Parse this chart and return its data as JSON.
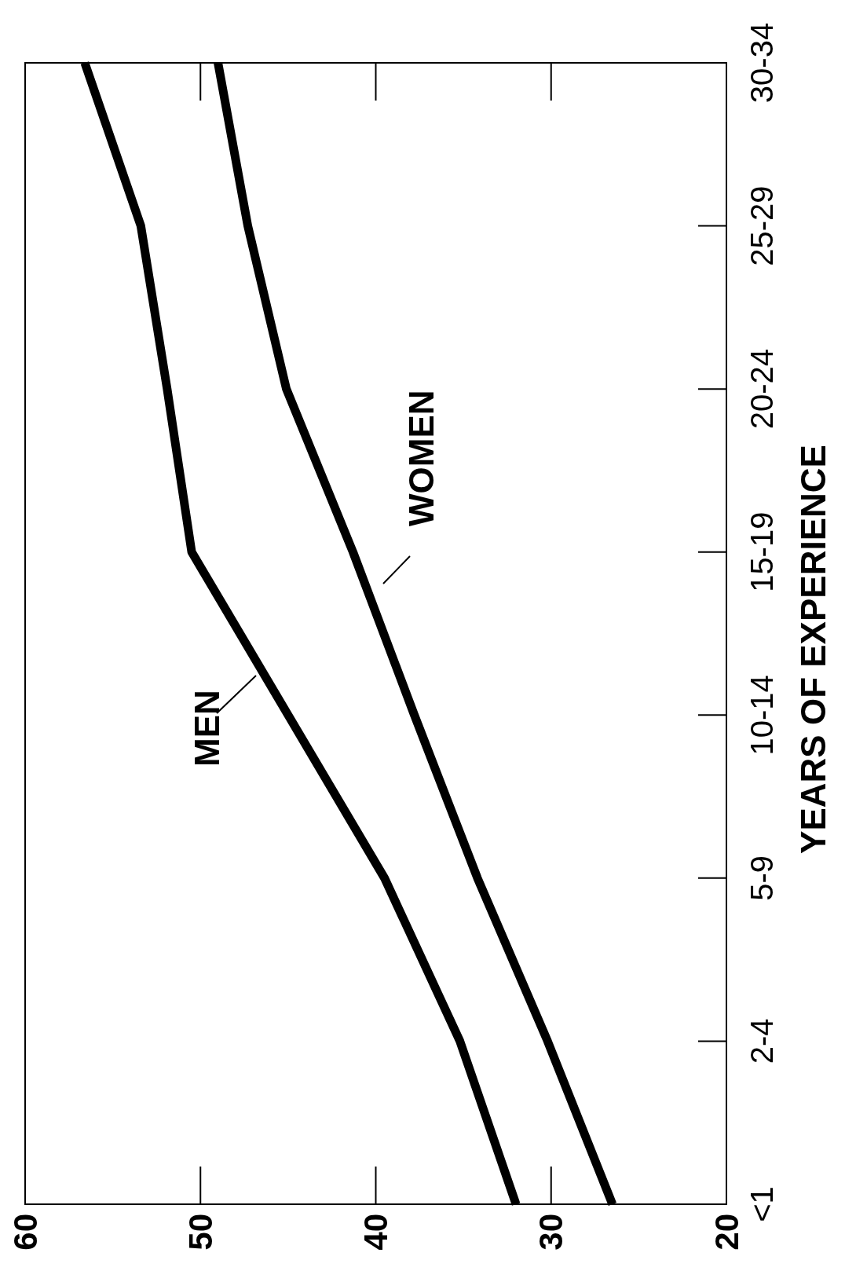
{
  "chart_data": {
    "type": "line",
    "orientation": "horizontal",
    "ylabel": "YEARS OF EXPERIENCE",
    "categories": [
      "30-34",
      "25-29",
      "20-24",
      "15-19",
      "10-14",
      "5-9",
      "2-4",
      "<1"
    ],
    "series": [
      {
        "name": "MEN",
        "color": "#000000",
        "values": [
          56.6,
          53.4,
          51.9,
          50.5,
          45.0,
          39.5,
          35.2,
          32.0
        ]
      },
      {
        "name": "WOMEN",
        "color": "#000000",
        "values": [
          49.0,
          47.3,
          45.1,
          41.3,
          37.8,
          34.2,
          30.2,
          26.5
        ]
      }
    ],
    "xlim": [
      60,
      20
    ],
    "xticks": [
      60,
      50,
      40,
      30,
      20
    ],
    "grid": false,
    "marker": "none",
    "line_style": "solid"
  }
}
